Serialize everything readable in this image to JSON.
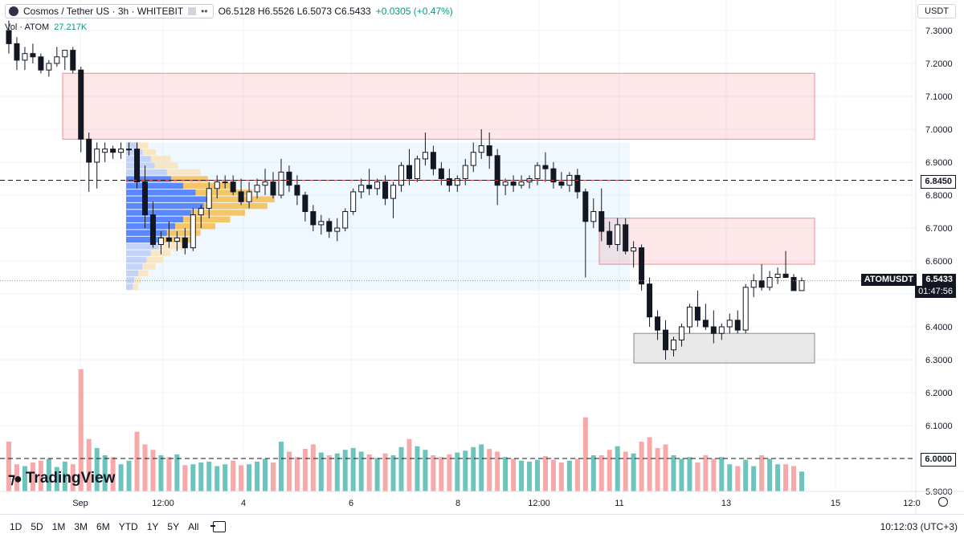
{
  "header": {
    "symbol_title": "Cosmos / Tether US · 3h · WHITEBIT",
    "ohlc": "O6.5128 H6.5526 L6.5073 C6.5433",
    "change": "+0.0305 (+0.47%)"
  },
  "volume_legend": {
    "label": "Vol · ATOM",
    "value": "27.217K"
  },
  "currency_button": "USDT",
  "price_tags": {
    "level_1": "6.8450",
    "current_symbol": "ATOMUSDT",
    "current_price": "6.5433",
    "countdown": "01:47:56",
    "level_2": "6.0000"
  },
  "branding": "TradingView",
  "timeframes": [
    "1D",
    "5D",
    "1M",
    "3M",
    "6M",
    "YTD",
    "1Y",
    "5Y",
    "All"
  ],
  "clock": "10:12:03 (UTC+3)",
  "colors": {
    "up": "#ffffff",
    "down": "#131722",
    "vol_up": "#6cc4bd",
    "vol_down": "#f7a8a8",
    "zone_red": "#f7c5c5",
    "zone_gray": "#d9d9d9",
    "poc_line": "#d32f2f"
  },
  "chart_data": {
    "type": "candlestick",
    "title": "Cosmos / Tether US · 3h · WHITEBIT",
    "ylabel": "USDT",
    "ylim": [
      5.9,
      7.35
    ],
    "y_ticks": [
      "7.3000",
      "7.2000",
      "7.1000",
      "7.0000",
      "6.9000",
      "6.8000",
      "6.7000",
      "6.6000",
      "6.5000",
      "6.4000",
      "6.3000",
      "6.2000",
      "6.1000",
      "6.0000",
      "5.9000"
    ],
    "x_ticks": [
      "Sep",
      "12:00",
      "4",
      "6",
      "8",
      "12:00",
      "11",
      "13",
      "15",
      "12:0"
    ],
    "candles": [
      [
        7.3,
        7.33,
        7.23,
        7.26
      ],
      [
        7.26,
        7.28,
        7.18,
        7.21
      ],
      [
        7.21,
        7.25,
        7.18,
        7.23
      ],
      [
        7.23,
        7.26,
        7.2,
        7.22
      ],
      [
        7.22,
        7.23,
        7.17,
        7.18
      ],
      [
        7.18,
        7.21,
        7.16,
        7.2
      ],
      [
        7.2,
        7.25,
        7.19,
        7.22
      ],
      [
        7.22,
        7.24,
        7.18,
        7.24
      ],
      [
        7.24,
        7.25,
        7.17,
        7.18
      ],
      [
        7.18,
        7.19,
        6.93,
        6.97
      ],
      [
        6.97,
        6.99,
        6.81,
        6.9
      ],
      [
        6.9,
        6.96,
        6.82,
        6.94
      ],
      [
        6.93,
        6.96,
        6.9,
        6.94
      ],
      [
        6.94,
        6.95,
        6.91,
        6.93
      ],
      [
        6.93,
        6.96,
        6.91,
        6.94
      ],
      [
        6.94,
        6.96,
        6.92,
        6.94
      ],
      [
        6.94,
        6.96,
        6.82,
        6.84
      ],
      [
        6.84,
        6.89,
        6.7,
        6.74
      ],
      [
        6.74,
        6.78,
        6.64,
        6.65
      ],
      [
        6.65,
        6.69,
        6.62,
        6.67
      ],
      [
        6.67,
        6.72,
        6.64,
        6.66
      ],
      [
        6.66,
        6.69,
        6.63,
        6.67
      ],
      [
        6.67,
        6.7,
        6.62,
        6.64
      ],
      [
        6.64,
        6.76,
        6.63,
        6.74
      ],
      [
        6.74,
        6.77,
        6.7,
        6.76
      ],
      [
        6.76,
        6.84,
        6.73,
        6.82
      ],
      [
        6.82,
        6.86,
        6.79,
        6.84
      ],
      [
        6.84,
        6.86,
        6.82,
        6.84
      ],
      [
        6.84,
        6.86,
        6.8,
        6.81
      ],
      [
        6.81,
        6.85,
        6.77,
        6.78
      ],
      [
        6.78,
        6.84,
        6.76,
        6.81
      ],
      [
        6.81,
        6.85,
        6.79,
        6.83
      ],
      [
        6.83,
        6.88,
        6.8,
        6.84
      ],
      [
        6.84,
        6.87,
        6.79,
        6.8
      ],
      [
        6.8,
        6.91,
        6.79,
        6.87
      ],
      [
        6.87,
        6.89,
        6.81,
        6.83
      ],
      [
        6.83,
        6.86,
        6.77,
        6.8
      ],
      [
        6.8,
        6.81,
        6.72,
        6.75
      ],
      [
        6.75,
        6.77,
        6.69,
        6.71
      ],
      [
        6.71,
        6.74,
        6.68,
        6.72
      ],
      [
        6.72,
        6.73,
        6.67,
        6.69
      ],
      [
        6.69,
        6.73,
        6.66,
        6.7
      ],
      [
        6.7,
        6.76,
        6.69,
        6.75
      ],
      [
        6.75,
        6.82,
        6.74,
        6.81
      ],
      [
        6.81,
        6.85,
        6.79,
        6.83
      ],
      [
        6.83,
        6.88,
        6.8,
        6.82
      ],
      [
        6.82,
        6.85,
        6.8,
        6.84
      ],
      [
        6.84,
        6.86,
        6.77,
        6.79
      ],
      [
        6.79,
        6.84,
        6.73,
        6.83
      ],
      [
        6.83,
        6.9,
        6.81,
        6.89
      ],
      [
        6.89,
        6.94,
        6.83,
        6.85
      ],
      [
        6.85,
        6.92,
        6.84,
        6.91
      ],
      [
        6.91,
        6.99,
        6.89,
        6.93
      ],
      [
        6.93,
        6.95,
        6.86,
        6.88
      ],
      [
        6.88,
        6.9,
        6.83,
        6.85
      ],
      [
        6.85,
        6.88,
        6.81,
        6.83
      ],
      [
        6.83,
        6.86,
        6.81,
        6.85
      ],
      [
        6.85,
        6.91,
        6.83,
        6.89
      ],
      [
        6.89,
        6.96,
        6.87,
        6.93
      ],
      [
        6.93,
        7.0,
        6.91,
        6.95
      ],
      [
        6.95,
        6.99,
        6.88,
        6.92
      ],
      [
        6.92,
        6.94,
        6.77,
        6.83
      ],
      [
        6.83,
        6.85,
        6.8,
        6.84
      ],
      [
        6.84,
        6.86,
        6.81,
        6.83
      ],
      [
        6.83,
        6.86,
        6.82,
        6.84
      ],
      [
        6.84,
        6.86,
        6.82,
        6.85
      ],
      [
        6.85,
        6.9,
        6.83,
        6.89
      ],
      [
        6.89,
        6.93,
        6.84,
        6.88
      ],
      [
        6.88,
        6.9,
        6.82,
        6.84
      ],
      [
        6.84,
        6.87,
        6.82,
        6.83
      ],
      [
        6.83,
        6.87,
        6.81,
        6.86
      ],
      [
        6.86,
        6.88,
        6.79,
        6.81
      ],
      [
        6.81,
        6.82,
        6.55,
        6.72
      ],
      [
        6.72,
        6.79,
        6.7,
        6.75
      ],
      [
        6.75,
        6.82,
        6.66,
        6.69
      ],
      [
        6.69,
        6.72,
        6.64,
        6.65
      ],
      [
        6.65,
        6.73,
        6.63,
        6.71
      ],
      [
        6.71,
        6.73,
        6.62,
        6.63
      ],
      [
        6.63,
        6.66,
        6.58,
        6.64
      ],
      [
        6.64,
        6.65,
        6.51,
        6.53
      ],
      [
        6.53,
        6.55,
        6.4,
        6.43
      ],
      [
        6.43,
        6.45,
        6.36,
        6.39
      ],
      [
        6.39,
        6.42,
        6.3,
        6.33
      ],
      [
        6.33,
        6.37,
        6.31,
        6.36
      ],
      [
        6.36,
        6.41,
        6.34,
        6.4
      ],
      [
        6.4,
        6.47,
        6.38,
        6.46
      ],
      [
        6.46,
        6.51,
        6.4,
        6.42
      ],
      [
        6.42,
        6.47,
        6.39,
        6.4
      ],
      [
        6.4,
        6.45,
        6.35,
        6.38
      ],
      [
        6.38,
        6.41,
        6.36,
        6.4
      ],
      [
        6.4,
        6.44,
        6.38,
        6.42
      ],
      [
        6.42,
        6.45,
        6.38,
        6.39
      ],
      [
        6.39,
        6.53,
        6.38,
        6.52
      ],
      [
        6.52,
        6.56,
        6.49,
        6.54
      ],
      [
        6.54,
        6.59,
        6.51,
        6.52
      ],
      [
        6.52,
        6.57,
        6.51,
        6.55
      ],
      [
        6.55,
        6.58,
        6.53,
        6.56
      ],
      [
        6.56,
        6.63,
        6.55,
        6.55
      ],
      [
        6.55,
        6.56,
        6.51,
        6.51
      ],
      [
        6.51,
        6.55,
        6.51,
        6.54
      ]
    ],
    "volume": [
      55,
      30,
      28,
      32,
      34,
      36,
      27,
      33,
      30,
      135,
      58,
      48,
      40,
      38,
      30,
      34,
      66,
      52,
      46,
      40,
      38,
      41,
      29,
      30,
      32,
      33,
      28,
      30,
      34,
      29,
      30,
      33,
      36,
      32,
      55,
      44,
      38,
      47,
      52,
      43,
      40,
      42,
      46,
      48,
      44,
      41,
      37,
      42,
      40,
      49,
      58,
      50,
      46,
      40,
      38,
      41,
      43,
      45,
      49,
      52,
      47,
      44,
      38,
      36,
      34,
      33,
      35,
      39,
      35,
      32,
      34,
      36,
      82,
      40,
      40,
      46,
      50,
      44,
      42,
      55,
      60,
      48,
      52,
      40,
      36,
      38,
      32,
      40,
      36,
      38,
      30,
      28,
      35,
      28,
      40,
      36,
      30,
      30,
      28,
      22
    ],
    "annotations": {
      "horizontal_levels": [
        6.845,
        6.0
      ],
      "zones": [
        {
          "name": "upper-resistance-zone",
          "from": 6.97,
          "to": 7.17
        },
        {
          "name": "lower-resistance-zone",
          "from": 6.59,
          "to": 6.73
        },
        {
          "name": "support-zone",
          "from": 6.29,
          "to": 6.38
        }
      ],
      "volume_profile_range": [
        6.51,
        6.96
      ],
      "poc_price": 6.845
    }
  }
}
